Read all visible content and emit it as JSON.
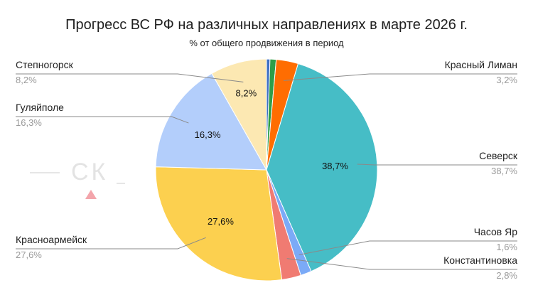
{
  "chart_data": {
    "type": "pie",
    "title": "Прогресс ВС РФ на различных направлениях в марте 2026 г.",
    "subtitle": "% от общего продвижения в период",
    "slices": [
      {
        "name": "",
        "value": 0.5,
        "value_label": "",
        "color": "#3d6fc4",
        "label_side": "none",
        "show_inside": false
      },
      {
        "name": "",
        "value": 0.9,
        "value_label": "",
        "color": "#2e9e48",
        "label_side": "none",
        "show_inside": false
      },
      {
        "name": "Красный Лиман",
        "value": 3.2,
        "value_label": "3,2%",
        "color": "#ff6d01",
        "label_side": "right",
        "show_inside": false
      },
      {
        "name": "Северск",
        "value": 38.7,
        "value_label": "38,7%",
        "color": "#46bdc6",
        "label_side": "right",
        "show_inside": true
      },
      {
        "name": "Часов Яр",
        "value": 1.6,
        "value_label": "1,6%",
        "color": "#7baaf7",
        "label_side": "right",
        "show_inside": false
      },
      {
        "name": "Константиновка",
        "value": 2.8,
        "value_label": "2,8%",
        "color": "#f07b72",
        "label_side": "right",
        "show_inside": false
      },
      {
        "name": "Красноармейск",
        "value": 27.6,
        "value_label": "27,6%",
        "color": "#fcd04f",
        "label_side": "left",
        "show_inside": true
      },
      {
        "name": "Гуляйполе",
        "value": 16.3,
        "value_label": "16,3%",
        "color": "#b3cefb",
        "label_side": "left",
        "show_inside": true
      },
      {
        "name": "Степногорск",
        "value": 8.2,
        "value_label": "8,2%",
        "color": "#fce8b2",
        "label_side": "left",
        "show_inside": true
      }
    ],
    "watermark": "СК"
  }
}
